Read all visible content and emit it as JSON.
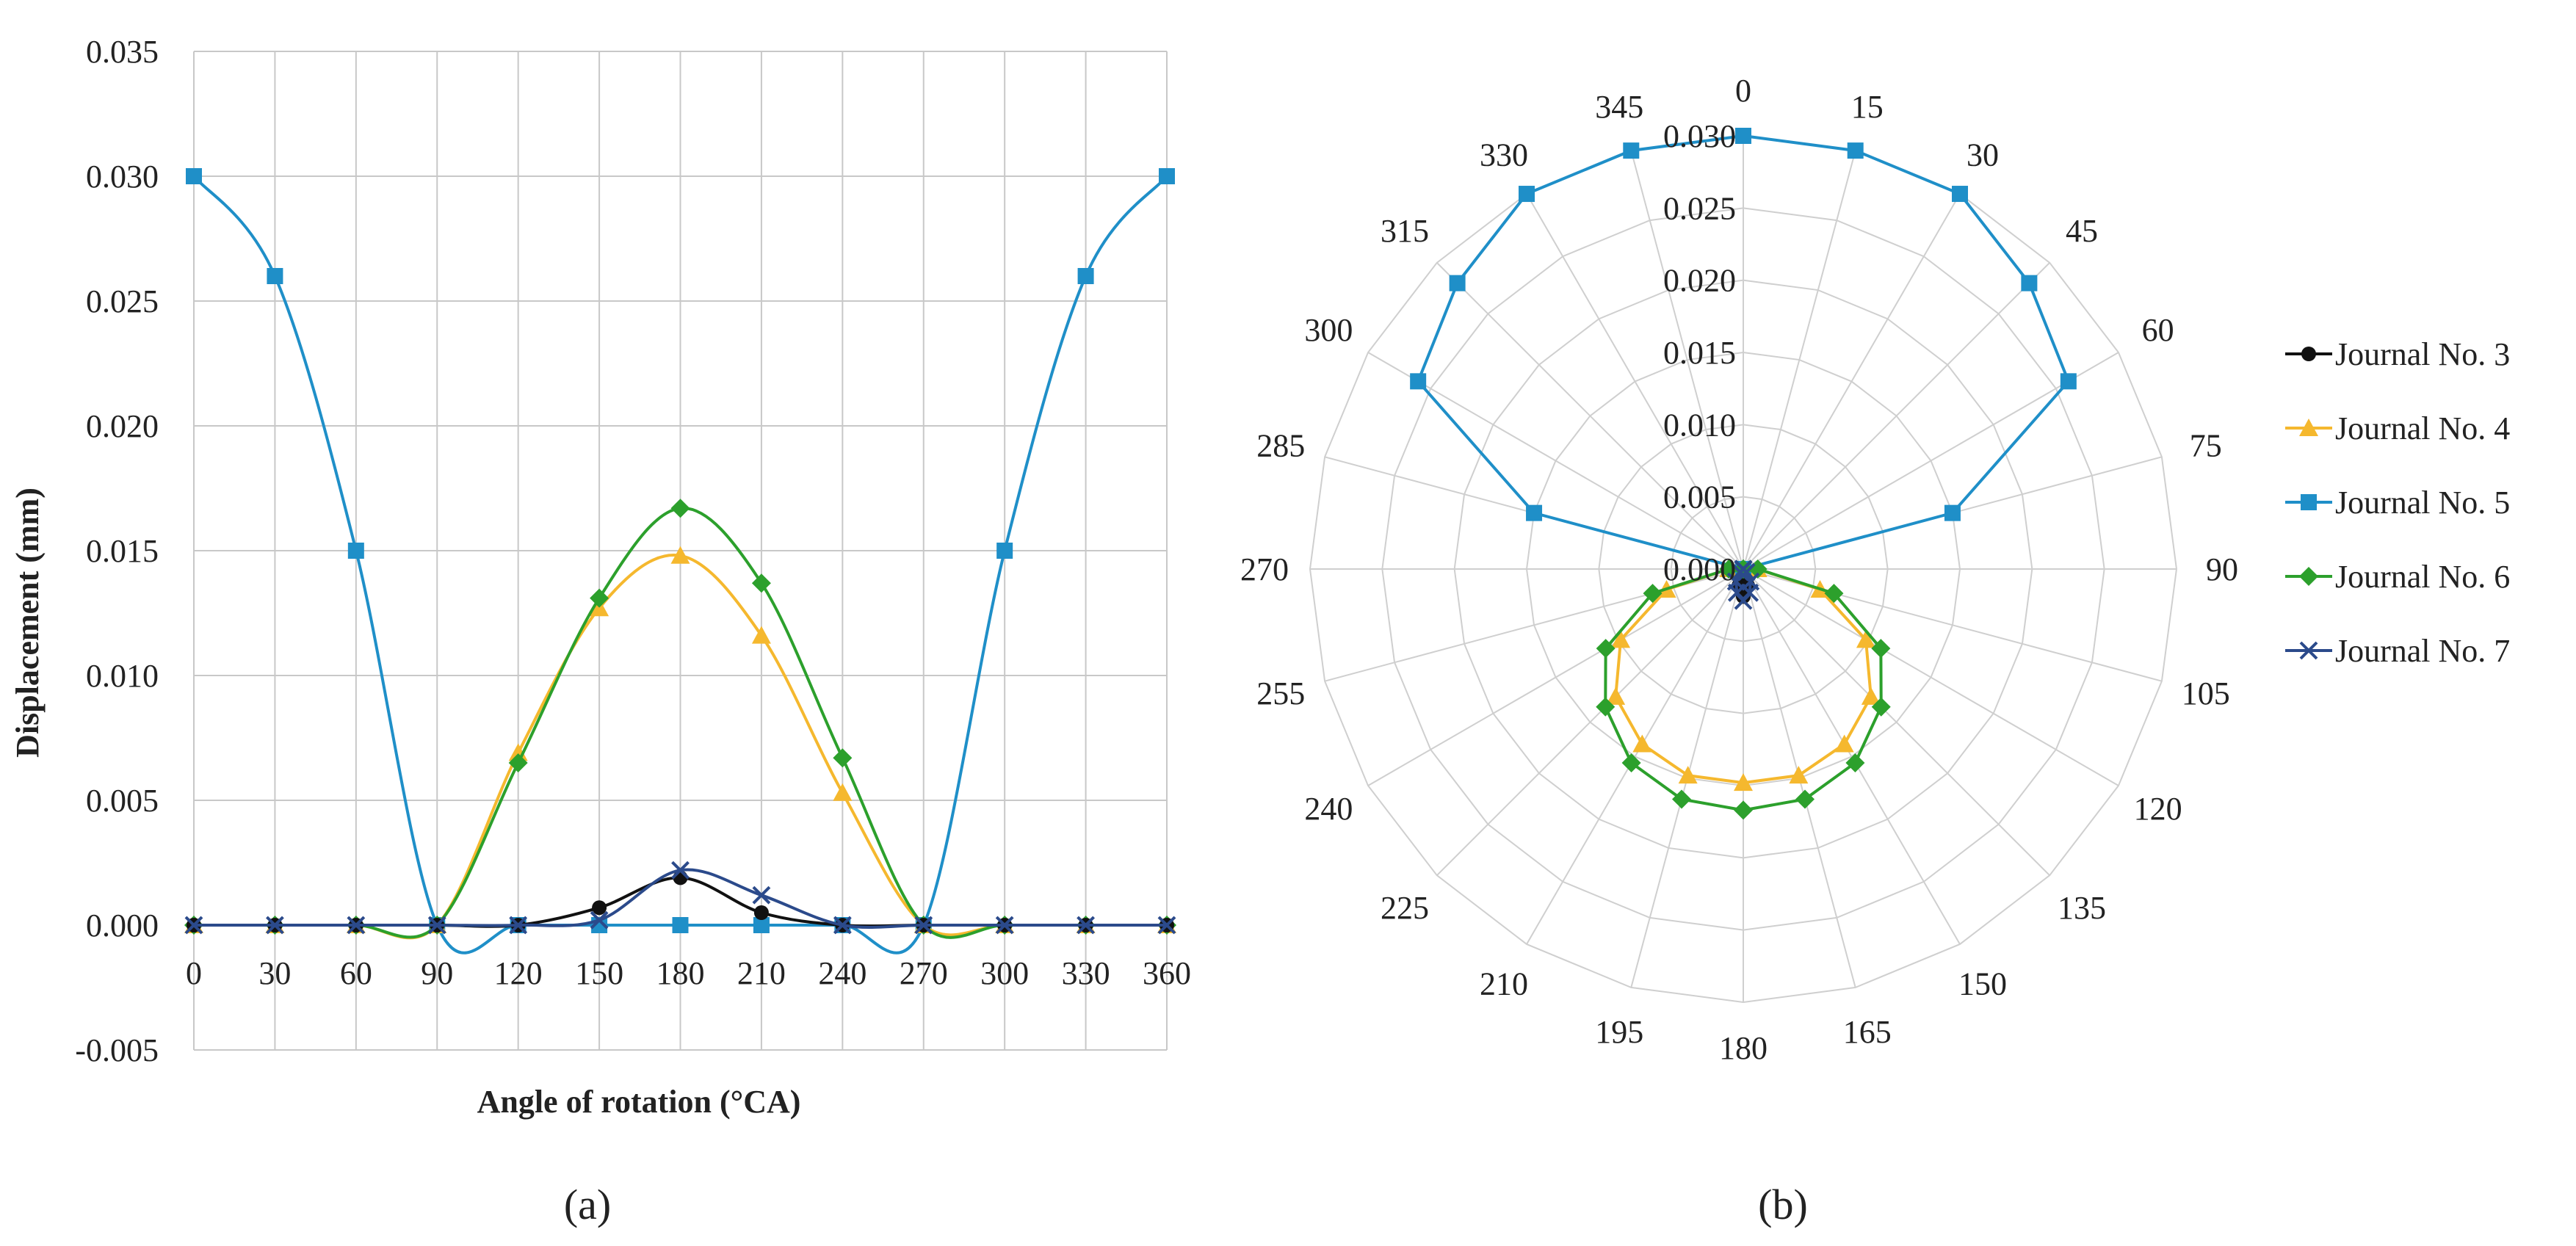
{
  "chart_data": [
    {
      "id": "a",
      "type": "line",
      "panel_label": "(a)",
      "title": "",
      "xlabel": "Angle of rotation (°CA)",
      "ylabel": "Displacement (mm)",
      "x": [
        0,
        30,
        60,
        90,
        120,
        150,
        180,
        210,
        240,
        270,
        300,
        330,
        360
      ],
      "xlim": [
        0,
        360
      ],
      "ylim": [
        -0.005,
        0.035
      ],
      "xticks": [
        "0",
        "30",
        "60",
        "90",
        "120",
        "150",
        "180",
        "210",
        "240",
        "270",
        "300",
        "330",
        "360"
      ],
      "yticks": [
        {
          "value": 0.035,
          "label": "0.035"
        },
        {
          "value": 0.03,
          "label": "0.030"
        },
        {
          "value": 0.025,
          "label": "0.025"
        },
        {
          "value": 0.02,
          "label": "0.020"
        },
        {
          "value": 0.015,
          "label": "0.015"
        },
        {
          "value": 0.01,
          "label": "0.010"
        },
        {
          "value": 0.005,
          "label": "0.005"
        },
        {
          "value": 0.0,
          "label": "0.000"
        },
        {
          "value": -0.005,
          "label": "-0.005"
        }
      ],
      "grid": true,
      "series": [
        {
          "name": "Journal No. 5",
          "color": "#1f8fc8",
          "marker": "square",
          "values": [
            0.03,
            0.026,
            0.015,
            0.0,
            0.0,
            0.0,
            0.0,
            0.0,
            0.0,
            0.0,
            0.015,
            0.026,
            0.03
          ]
        },
        {
          "name": "Journal No. 4",
          "color": "#f5b82e",
          "marker": "triangle",
          "values": [
            0.0,
            0.0,
            0.0,
            0.0,
            0.0069,
            0.0127,
            0.0148,
            0.0116,
            0.0053,
            0.0,
            0.0,
            0.0,
            0.0
          ]
        },
        {
          "name": "Journal No. 6",
          "color": "#2ca02c",
          "marker": "diamond",
          "values": [
            0.0,
            0.0,
            0.0,
            0.0,
            0.0065,
            0.0131,
            0.0167,
            0.0137,
            0.0067,
            0.0,
            0.0,
            0.0,
            0.0
          ]
        },
        {
          "name": "Journal No. 3",
          "color": "#111111",
          "marker": "circle",
          "values": [
            0.0,
            0.0,
            0.0,
            0.0,
            0.0,
            0.0007,
            0.0019,
            0.0005,
            0.0,
            0.0,
            0.0,
            0.0,
            0.0
          ]
        },
        {
          "name": "Journal No. 7",
          "color": "#2b4a8b",
          "marker": "x",
          "values": [
            0.0,
            0.0,
            0.0,
            0.0,
            0.0,
            0.0002,
            0.0022,
            0.0012,
            0.0,
            0.0,
            0.0,
            0.0,
            0.0
          ]
        }
      ]
    },
    {
      "id": "b",
      "type": "radar",
      "panel_label": "(b)",
      "title": "",
      "angles": [
        0,
        15,
        30,
        45,
        60,
        75,
        90,
        105,
        120,
        135,
        150,
        165,
        180,
        195,
        210,
        225,
        240,
        255,
        270,
        285,
        300,
        315,
        330,
        345
      ],
      "angle_labels": [
        "0",
        "15",
        "30",
        "45",
        "60",
        "75",
        "90",
        "105",
        "120",
        "135",
        "150",
        "165",
        "180",
        "195",
        "210",
        "225",
        "240",
        "255",
        "270",
        "285",
        "300",
        "315",
        "330",
        "345"
      ],
      "rlim": [
        0,
        0.03
      ],
      "rticks": [
        {
          "value": 0.0,
          "label": "0.000"
        },
        {
          "value": 0.005,
          "label": "0.005"
        },
        {
          "value": 0.01,
          "label": "0.010"
        },
        {
          "value": 0.015,
          "label": "0.015"
        },
        {
          "value": 0.02,
          "label": "0.020"
        },
        {
          "value": 0.025,
          "label": "0.025"
        },
        {
          "value": 0.03,
          "label": "0.030"
        }
      ],
      "grid": true,
      "legend_position": "right",
      "series": [
        {
          "name": "Journal No. 3",
          "color": "#111111",
          "marker": "circle",
          "values": [
            0,
            0,
            0,
            0,
            0,
            0,
            0,
            0,
            0,
            0,
            0.0004,
            0.0012,
            0.0019,
            0.0012,
            0.0004,
            0,
            0,
            0,
            0,
            0,
            0,
            0,
            0,
            0
          ]
        },
        {
          "name": "Journal No. 4",
          "color": "#f5b82e",
          "marker": "triangle",
          "values": [
            0,
            0,
            0,
            0,
            0,
            0,
            0.001,
            0.0055,
            0.0098,
            0.0125,
            0.014,
            0.0148,
            0.0148,
            0.0148,
            0.014,
            0.0125,
            0.0098,
            0.0055,
            0.001,
            0,
            0,
            0,
            0,
            0
          ]
        },
        {
          "name": "Journal No. 5",
          "color": "#1f8fc8",
          "marker": "square",
          "values": [
            0.03,
            0.03,
            0.03,
            0.028,
            0.026,
            0.015,
            0,
            0,
            0,
            0,
            0,
            0,
            0,
            0,
            0,
            0,
            0,
            0,
            0,
            0.015,
            0.026,
            0.028,
            0.03,
            0.03
          ]
        },
        {
          "name": "Journal No. 6",
          "color": "#2ca02c",
          "marker": "diamond",
          "values": [
            0,
            0,
            0,
            0,
            0,
            0,
            0.001,
            0.0065,
            0.011,
            0.0135,
            0.0155,
            0.0165,
            0.0167,
            0.0165,
            0.0155,
            0.0135,
            0.011,
            0.0065,
            0.001,
            0,
            0,
            0,
            0,
            0
          ]
        },
        {
          "name": "Journal No. 7",
          "color": "#2b4a8b",
          "marker": "x",
          "values": [
            0,
            0,
            0,
            0,
            0,
            0,
            0,
            0,
            0,
            0.0003,
            0.001,
            0.0017,
            0.0022,
            0.0017,
            0.001,
            0.0003,
            0,
            0,
            0,
            0,
            0,
            0,
            0,
            0
          ]
        }
      ]
    }
  ]
}
